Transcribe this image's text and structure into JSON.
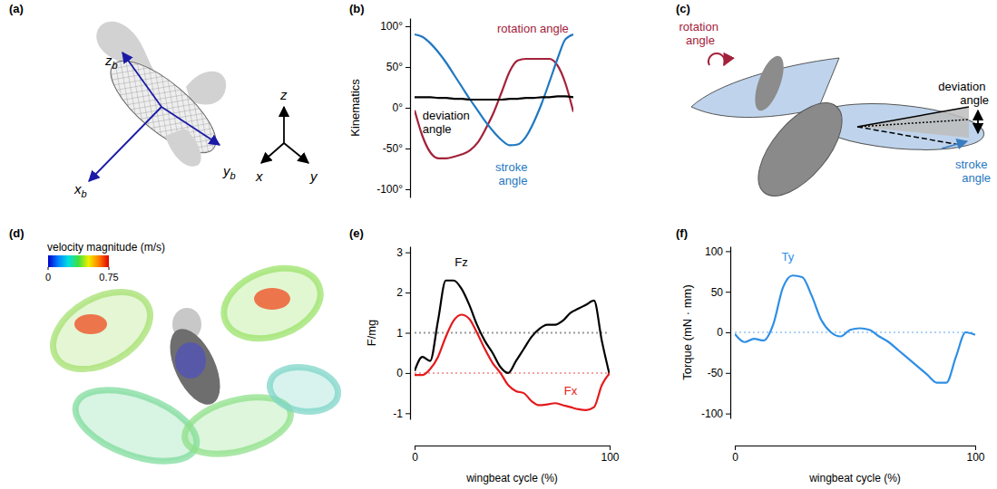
{
  "chart_data": [
    {
      "panel_label": "(b)",
      "type": "line",
      "ylabel": "Kinematics",
      "x": [
        0,
        5,
        10,
        15,
        20,
        25,
        30,
        35,
        40,
        45,
        50,
        55,
        60,
        65,
        70,
        75,
        80,
        85,
        90,
        95,
        100
      ],
      "series": [
        {
          "name": "rotation angle",
          "color": "#a3213a",
          "values": [
            -3,
            -35,
            -55,
            -62,
            -62,
            -60,
            -57,
            -52,
            -42,
            -25,
            -5,
            20,
            45,
            58,
            60,
            60,
            60,
            60,
            52,
            30,
            -5
          ]
        },
        {
          "name": "stroke angle",
          "color": "#1f78c1",
          "values": [
            90,
            87,
            79,
            68,
            55,
            40,
            25,
            10,
            -4,
            -18,
            -30,
            -40,
            -46,
            -45,
            -36,
            -18,
            5,
            32,
            60,
            84,
            90
          ]
        },
        {
          "name": "deviation angle",
          "color": "#000000",
          "values": [
            13,
            13,
            13,
            12,
            12,
            11,
            11,
            10,
            10,
            10,
            10,
            10,
            11,
            11,
            12,
            12,
            13,
            13,
            14,
            14,
            13
          ]
        }
      ],
      "xlim": [
        0,
        100
      ],
      "ylim": [
        -110,
        110
      ],
      "yticks": [
        {
          "value": -100,
          "label": "-100°"
        },
        {
          "value": -50,
          "label": "-50°"
        },
        {
          "value": 0,
          "label": "0°"
        },
        {
          "value": 50,
          "label": "50°"
        },
        {
          "value": 100,
          "label": "100°"
        }
      ],
      "tick_labels": "y"
    },
    {
      "panel_label": "(e)",
      "type": "line",
      "xlabel": "wingbeat cycle (%)",
      "ylabel": "F/mg",
      "x": [
        0,
        4,
        8,
        12,
        16,
        20,
        24,
        28,
        32,
        36,
        40,
        44,
        48,
        52,
        56,
        60,
        64,
        68,
        72,
        76,
        80,
        84,
        88,
        92,
        96,
        100
      ],
      "series": [
        {
          "name": "Fz",
          "color": "#000000",
          "values": [
            0.05,
            0.4,
            0.3,
            1.3,
            2.3,
            2.3,
            2.1,
            1.7,
            1.2,
            0.8,
            0.5,
            0.15,
            0,
            0.3,
            0.6,
            0.9,
            1.1,
            1.2,
            1.2,
            1.3,
            1.5,
            1.6,
            1.7,
            1.8,
            0.8,
            -0.05
          ]
        },
        {
          "name": "Fx",
          "color": "#e41a1c",
          "values": [
            -0.05,
            -0.05,
            0.1,
            0.4,
            0.9,
            1.3,
            1.45,
            1.35,
            1.0,
            0.6,
            0.25,
            0,
            -0.3,
            -0.45,
            -0.5,
            -0.7,
            -0.8,
            -0.78,
            -0.75,
            -0.8,
            -0.85,
            -0.9,
            -0.92,
            -0.85,
            -0.3,
            0
          ]
        }
      ],
      "xlim": [
        0,
        100
      ],
      "ylim": [
        -1.15,
        3.15
      ],
      "xticks": [
        0,
        100
      ],
      "yticks": [
        -1,
        0,
        1,
        2,
        3
      ],
      "reference_lines": [
        1,
        0
      ]
    },
    {
      "panel_label": "(f)",
      "type": "line",
      "xlabel": "wingbeat cycle (%)",
      "ylabel": "Torque  (mN · mm)",
      "x": [
        0,
        4,
        8,
        12,
        16,
        20,
        24,
        28,
        32,
        36,
        40,
        44,
        48,
        52,
        56,
        60,
        64,
        68,
        72,
        76,
        80,
        84,
        88,
        92,
        96,
        100
      ],
      "series": [
        {
          "name": "Ty",
          "color": "#2f8ee5",
          "values": [
            -2,
            -12,
            -8,
            -10,
            10,
            55,
            70,
            68,
            45,
            15,
            0,
            -5,
            3,
            5,
            3,
            -5,
            -12,
            -22,
            -32,
            -42,
            -52,
            -62,
            -62,
            -30,
            0,
            -3
          ]
        }
      ],
      "xlim": [
        0,
        100
      ],
      "ylim": [
        -106,
        106
      ],
      "xticks": [
        0,
        100
      ],
      "yticks": [
        -100,
        -50,
        0,
        50,
        100
      ],
      "reference_lines": [
        0
      ]
    }
  ],
  "illustrations": {
    "a": {
      "panel_label": "(a)",
      "body_axes": [
        {
          "base": "x",
          "sub": "b"
        },
        {
          "base": "y",
          "sub": "b"
        },
        {
          "base": "z",
          "sub": "b"
        }
      ],
      "world_axes": [
        "x",
        "y",
        "z"
      ]
    },
    "c": {
      "panel_label": "(c)",
      "labels": [
        "rotation angle",
        "deviation angle",
        "stroke angle"
      ]
    },
    "d": {
      "panel_label": "(d)",
      "colorbar": {
        "label": "velocity magnitude (m/s)",
        "range": [
          0,
          0.75
        ],
        "ticks": [
          0,
          0.75
        ]
      }
    }
  }
}
